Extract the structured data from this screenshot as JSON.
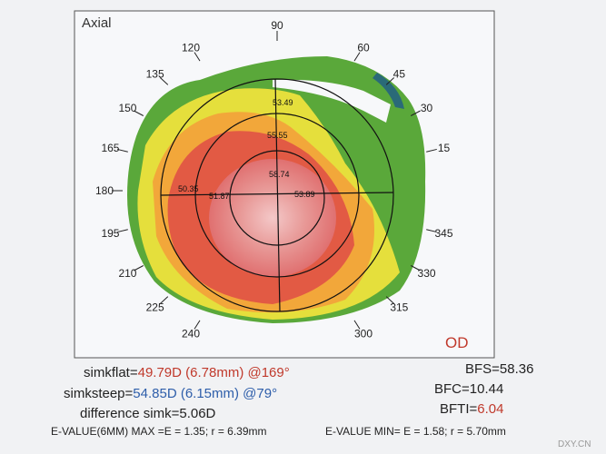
{
  "map": {
    "title": "Axial",
    "eye": "OD",
    "angles": [
      "90",
      "120",
      "60",
      "135",
      "45",
      "150",
      "30",
      "165",
      "15",
      "180",
      "195",
      "345",
      "210",
      "330",
      "225",
      "315",
      "240",
      "300"
    ],
    "readings": [
      "53.49",
      "55.55",
      "58.74",
      "50.35",
      "51.87",
      "53.89"
    ]
  },
  "stats": {
    "simkflat": {
      "label": "simkflat=",
      "value": "49.79D (6.78mm) @169°"
    },
    "simksteep": {
      "label": "simksteep=",
      "value": "54.85D (6.15mm) @79°"
    },
    "difference": "difference simk=5.06D",
    "bfs": "BFS=58.36",
    "bfc": "BFC=10.44",
    "bfti": {
      "label": "BFTI=",
      "value": "6.04"
    },
    "evalue_max": "E-VALUE(6MM) MAX =E = 1.35;  r = 6.39mm",
    "evalue_min": "E-VALUE MIN= E = 1.58;  r = 5.70mm"
  },
  "watermark": "DXY.CN"
}
